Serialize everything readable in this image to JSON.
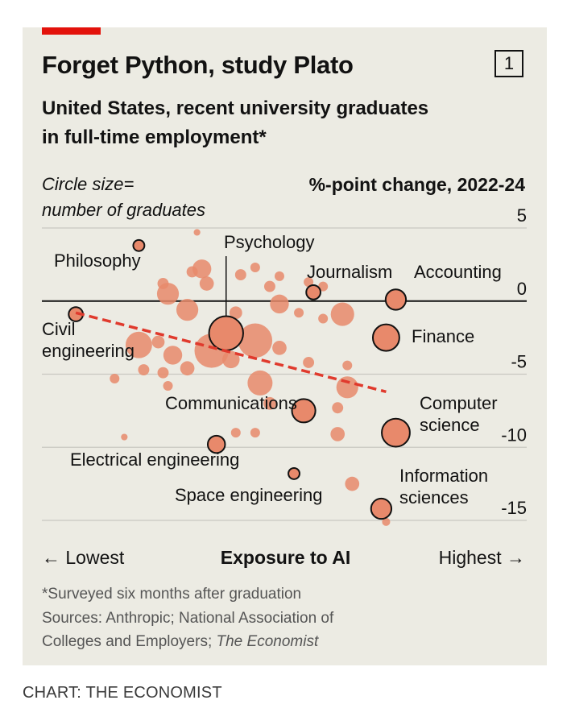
{
  "header": {
    "title": "Forget Python, study Plato",
    "badge": "1",
    "subtitle_line1": "United States, recent university graduates",
    "subtitle_line2": "in full-time employment*",
    "legend_note_line1": "Circle size=",
    "legend_note_line2": "number of graduates",
    "unit_label": "%-point change, 2022-24"
  },
  "axis": {
    "x_label": "Exposure to AI",
    "x_low": "← Lowest",
    "x_high": "Highest →"
  },
  "footer": {
    "note": "*Surveyed six months after graduation",
    "source_line1": "Sources: Anthropic; National Association of",
    "source_line2": "Colleges and Employers; ",
    "source_italic": "The Economist",
    "credit": "CHART: THE ECONOMIST"
  },
  "colors": {
    "accent": "#e3120b",
    "bubble_fill": "#e8896b",
    "trend": "#e03a2d",
    "background": "#ecebe3"
  },
  "chart_data": {
    "type": "scatter",
    "x_axis": "Exposure to AI (Lowest to Highest, no numeric scale)",
    "y_axis": "%-point change, 2022-24",
    "ylim": [
      -15,
      5
    ],
    "yticks": [
      5,
      0,
      -5,
      -10,
      -15
    ],
    "grid": true,
    "size_encoding": "number of graduates",
    "trend_line": {
      "x": [
        0.07,
        0.71
      ],
      "y": [
        -0.8,
        -6.2
      ]
    },
    "labeled_points": [
      {
        "name": "Philosophy",
        "x": 0.2,
        "y": 3.8,
        "size": 5,
        "label": "Philosophy"
      },
      {
        "name": "Psychology",
        "x": 0.38,
        "y": -2.2,
        "size": 20,
        "label": "Psychology"
      },
      {
        "name": "Journalism",
        "x": 0.56,
        "y": 0.6,
        "size": 7,
        "label": "Journalism"
      },
      {
        "name": "Accounting",
        "x": 0.73,
        "y": 0.1,
        "size": 11,
        "label": "Accounting"
      },
      {
        "name": "Civil engineering",
        "x": 0.07,
        "y": -0.9,
        "size": 7,
        "label": "Civil engineering"
      },
      {
        "name": "Finance",
        "x": 0.71,
        "y": -2.5,
        "size": 15,
        "label": "Finance"
      },
      {
        "name": "Communications",
        "x": 0.54,
        "y": -7.5,
        "size": 13,
        "label": "Communications"
      },
      {
        "name": "Computer science",
        "x": 0.73,
        "y": -9.0,
        "size": 16,
        "label": "Computer science"
      },
      {
        "name": "Electrical engineering",
        "x": 0.36,
        "y": -9.8,
        "size": 9,
        "label": "Electrical engineering"
      },
      {
        "name": "Space engineering",
        "x": 0.52,
        "y": -11.8,
        "size": 5,
        "label": "Space engineering"
      },
      {
        "name": "Information sciences",
        "x": 0.7,
        "y": -14.2,
        "size": 11,
        "label": "Information sciences"
      }
    ],
    "unlabeled_points": [
      {
        "x": 0.32,
        "y": 4.7,
        "size": 2
      },
      {
        "x": 0.33,
        "y": 2.2,
        "size": 10
      },
      {
        "x": 0.31,
        "y": 2.0,
        "size": 5
      },
      {
        "x": 0.25,
        "y": 1.2,
        "size": 5
      },
      {
        "x": 0.41,
        "y": 1.8,
        "size": 5
      },
      {
        "x": 0.44,
        "y": 2.3,
        "size": 4
      },
      {
        "x": 0.49,
        "y": 1.7,
        "size": 4
      },
      {
        "x": 0.47,
        "y": 1.0,
        "size": 5
      },
      {
        "x": 0.55,
        "y": 1.3,
        "size": 4
      },
      {
        "x": 0.58,
        "y": 1.0,
        "size": 4
      },
      {
        "x": 0.34,
        "y": 1.2,
        "size": 7
      },
      {
        "x": 0.26,
        "y": 0.5,
        "size": 12
      },
      {
        "x": 0.3,
        "y": -0.6,
        "size": 12
      },
      {
        "x": 0.4,
        "y": -0.8,
        "size": 6
      },
      {
        "x": 0.49,
        "y": -0.2,
        "size": 10
      },
      {
        "x": 0.53,
        "y": -0.8,
        "size": 4
      },
      {
        "x": 0.58,
        "y": -1.2,
        "size": 4
      },
      {
        "x": 0.62,
        "y": -0.9,
        "size": 13
      },
      {
        "x": 0.2,
        "y": -3.0,
        "size": 15
      },
      {
        "x": 0.24,
        "y": -2.8,
        "size": 6
      },
      {
        "x": 0.27,
        "y": -3.7,
        "size": 10
      },
      {
        "x": 0.35,
        "y": -3.4,
        "size": 20
      },
      {
        "x": 0.39,
        "y": -4.0,
        "size": 9
      },
      {
        "x": 0.44,
        "y": -2.7,
        "size": 20
      },
      {
        "x": 0.49,
        "y": -3.2,
        "size": 7
      },
      {
        "x": 0.21,
        "y": -4.7,
        "size": 5
      },
      {
        "x": 0.25,
        "y": -4.9,
        "size": 5
      },
      {
        "x": 0.3,
        "y": -4.6,
        "size": 7
      },
      {
        "x": 0.55,
        "y": -4.2,
        "size": 5
      },
      {
        "x": 0.63,
        "y": -4.4,
        "size": 4
      },
      {
        "x": 0.15,
        "y": -5.3,
        "size": 4
      },
      {
        "x": 0.26,
        "y": -5.8,
        "size": 4
      },
      {
        "x": 0.45,
        "y": -5.6,
        "size": 14
      },
      {
        "x": 0.63,
        "y": -5.9,
        "size": 12
      },
      {
        "x": 0.47,
        "y": -7.0,
        "size": 6
      },
      {
        "x": 0.61,
        "y": -7.3,
        "size": 5
      },
      {
        "x": 0.44,
        "y": -9.0,
        "size": 4
      },
      {
        "x": 0.4,
        "y": -9.0,
        "size": 4
      },
      {
        "x": 0.61,
        "y": -9.1,
        "size": 7
      },
      {
        "x": 0.17,
        "y": -9.3,
        "size": 2
      },
      {
        "x": 0.64,
        "y": -12.5,
        "size": 7
      },
      {
        "x": 0.71,
        "y": -15.1,
        "size": 3
      }
    ]
  }
}
